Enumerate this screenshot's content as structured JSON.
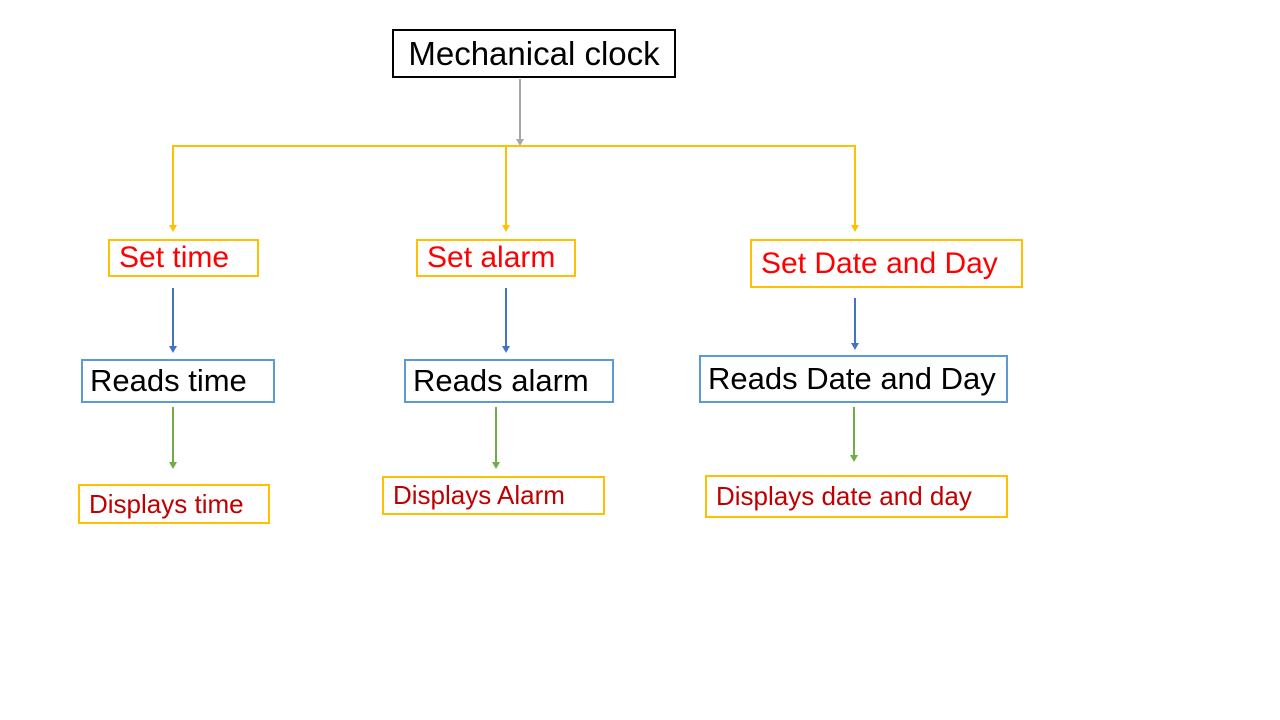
{
  "root": {
    "label": "Mechanical clock"
  },
  "branches": [
    {
      "action": "Set time",
      "read": "Reads time",
      "display": "Displays time"
    },
    {
      "action": "Set alarm",
      "read": "Reads alarm",
      "display": "Displays Alarm"
    },
    {
      "action": "Set Date and Day",
      "read": "Reads Date and Day",
      "display": "Displays date and day"
    }
  ],
  "colors": {
    "background": "#ffffff",
    "root_border": "#000000",
    "root_connector": "#a6a6a6",
    "branch_connector": "#ffc000",
    "action_border": "#ffc000",
    "action_text": "#ff0000",
    "read_border": "#5b9bd5",
    "read_connector": "#4472c4",
    "display_connector": "#70ad47",
    "display_border": "#ffc000",
    "display_text": "#c00000"
  }
}
